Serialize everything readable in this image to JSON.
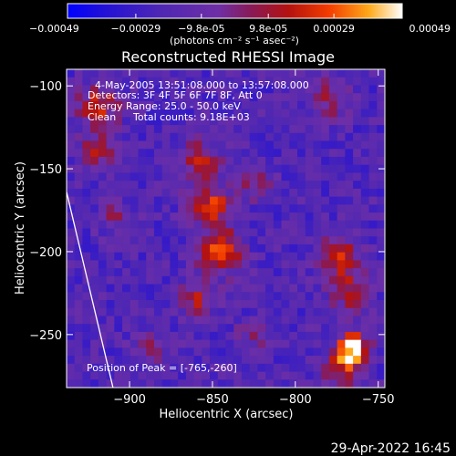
{
  "chart_data": {
    "type": "heatmap",
    "title": "Reconstructed RHESSI Image",
    "xlabel": "Heliocentric X (arcsec)",
    "ylabel": "Heliocentric Y (arcsec)",
    "xlim": [
      -938,
      -746
    ],
    "ylim": [
      -282,
      -90
    ],
    "xticks": [
      -900,
      -850,
      -800,
      -750
    ],
    "yticks": [
      -100,
      -150,
      -200,
      -250
    ],
    "colorbar": {
      "colormap": "red-temperature",
      "range": [
        -0.00049,
        0.00049
      ],
      "ticks": [
        -0.00049,
        -0.00029,
        -9.8e-05,
        9.8e-05,
        0.00029,
        0.00049
      ],
      "tick_labels": [
        "-0.00049",
        "-0.00029",
        "-9.8e-05",
        "9.8e-05",
        "0.00029",
        "0.00049"
      ],
      "unit_label": "(photons cm⁻² s⁻¹ asec⁻²)"
    },
    "annotations": {
      "time_range": "4-May-2005 13:51:08.000 to 13:57:08.000",
      "detectors": "Detectors: 3F 4F 5F 6F 7F 8F, Att 0",
      "energy": "Energy Range: 25.0 - 50.0 keV",
      "clean": "Clean",
      "counts": "Total counts: 9.18E+03",
      "peak": "Position of Peak = [-765,-260]"
    },
    "peak": {
      "x": -765,
      "y": -260
    },
    "sources": [
      {
        "x": -765,
        "y": -258,
        "amp": 1.0,
        "sigma": 6
      },
      {
        "x": -771,
        "y": -270,
        "amp": 0.6,
        "sigma": 8
      },
      {
        "x": -846,
        "y": -200,
        "amp": 0.75,
        "sigma": 9
      },
      {
        "x": -851,
        "y": -172,
        "amp": 0.6,
        "sigma": 9
      },
      {
        "x": -857,
        "y": -145,
        "amp": 0.5,
        "sigma": 8
      },
      {
        "x": -859,
        "y": -228,
        "amp": 0.45,
        "sigma": 8
      },
      {
        "x": -773,
        "y": -203,
        "amp": 0.55,
        "sigma": 9
      },
      {
        "x": -766,
        "y": -225,
        "amp": 0.5,
        "sigma": 8
      },
      {
        "x": -919,
        "y": -112,
        "amp": 0.55,
        "sigma": 9
      },
      {
        "x": -920,
        "y": -140,
        "amp": 0.4,
        "sigma": 8
      },
      {
        "x": -909,
        "y": -178,
        "amp": 0.3,
        "sigma": 7
      },
      {
        "x": -780,
        "y": -108,
        "amp": 0.35,
        "sigma": 9
      },
      {
        "x": -824,
        "y": -160,
        "amp": 0.3,
        "sigma": 7
      },
      {
        "x": -887,
        "y": -258,
        "amp": 0.3,
        "sigma": 8
      },
      {
        "x": -827,
        "y": -252,
        "amp": 0.25,
        "sigma": 7
      }
    ],
    "limb": [
      {
        "x": -938,
        "y": -164
      },
      {
        "x": -910,
        "y": -282
      }
    ]
  },
  "footer": {
    "timestamp": "29-Apr-2022 16:45"
  }
}
